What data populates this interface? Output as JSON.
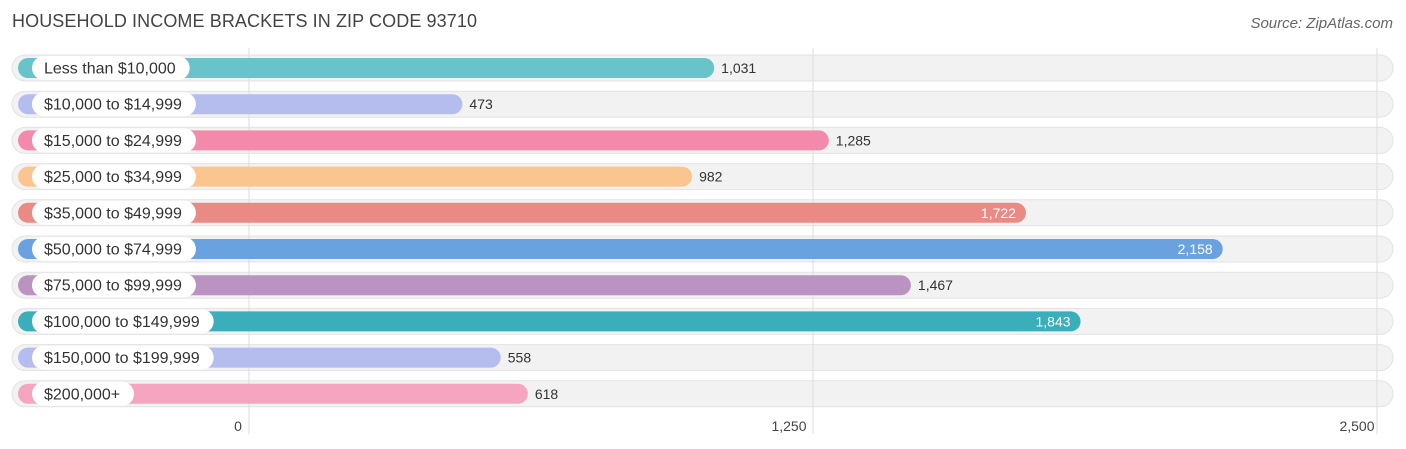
{
  "header": {
    "title": "HOUSEHOLD INCOME BRACKETS IN ZIP CODE 93710",
    "source": "Source: ZipAtlas.com"
  },
  "chart_data": {
    "type": "bar",
    "orientation": "horizontal",
    "title": "HOUSEHOLD INCOME BRACKETS IN ZIP CODE 93710",
    "xlabel": "",
    "ylabel": "",
    "xlim": [
      0,
      2500
    ],
    "ticks": [
      0,
      1250,
      2500
    ],
    "tick_labels": [
      "0",
      "1,250",
      "2,500"
    ],
    "grid": true,
    "categories": [
      "Less than $10,000",
      "$10,000 to $14,999",
      "$15,000 to $24,999",
      "$25,000 to $34,999",
      "$35,000 to $49,999",
      "$50,000 to $74,999",
      "$75,000 to $99,999",
      "$100,000 to $149,999",
      "$150,000 to $199,999",
      "$200,000+"
    ],
    "values": [
      1031,
      473,
      1285,
      982,
      1722,
      2158,
      1467,
      1843,
      558,
      618
    ],
    "value_labels": [
      "1,031",
      "473",
      "1,285",
      "982",
      "1,722",
      "2,158",
      "1,467",
      "1,843",
      "558",
      "618"
    ],
    "colors": [
      "#68c3cb",
      "#b5bdee",
      "#f48aab",
      "#fbc58f",
      "#ea8a84",
      "#6aa2e0",
      "#bb93c3",
      "#3aaebb",
      "#b5bdee",
      "#f6a5c1"
    ],
    "value_label_inside": [
      false,
      false,
      false,
      false,
      true,
      true,
      false,
      true,
      false,
      false
    ]
  }
}
